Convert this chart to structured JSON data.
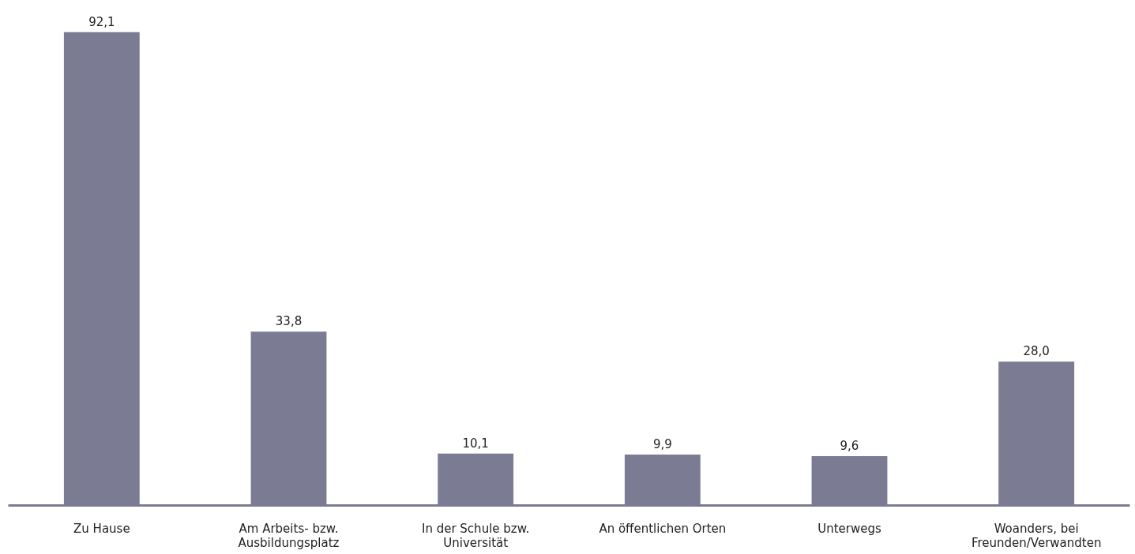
{
  "chart_data": {
    "type": "bar",
    "categories": [
      "Zu Hause",
      "Am Arbeits- bzw.\nAusbildungsplatz",
      "In der Schule bzw.\nUniversität",
      "An öffentlichen Orten",
      "Unterwegs",
      "Woanders, bei\nFreunden/Verwandten"
    ],
    "values": [
      92.1,
      33.8,
      10.1,
      9.9,
      9.6,
      28.0
    ],
    "value_labels": [
      "92,1",
      "33,8",
      "10,1",
      "9,9",
      "9,6",
      "28,0"
    ],
    "color": "#7b7b93",
    "grid": false,
    "tick_labels": "x"
  }
}
